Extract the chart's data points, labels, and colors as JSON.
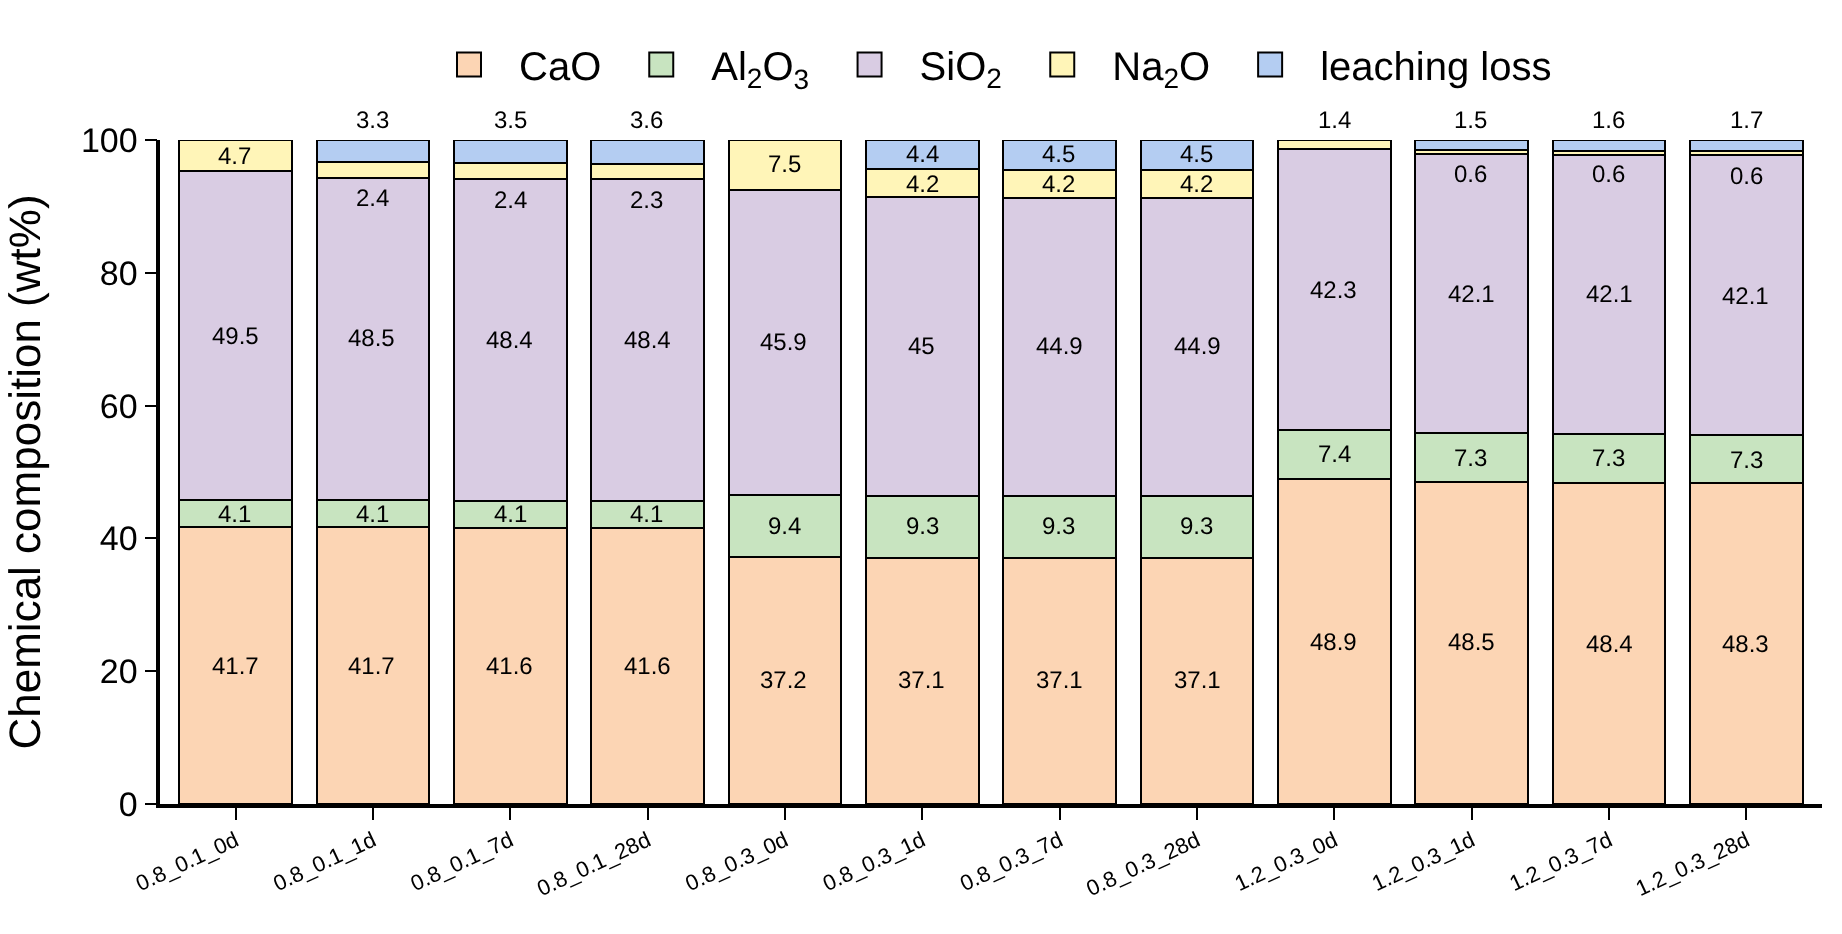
{
  "chart_data": {
    "type": "bar",
    "stacked": true,
    "ylabel": "Chemical composition (wt%)",
    "categories": [
      "0.8_0.1_0d",
      "0.8_0.1_1d",
      "0.8_0.1_7d",
      "0.8_0.1_28d",
      "0.8_0.3_0d",
      "0.8_0.3_1d",
      "0.8_0.3_7d",
      "0.8_0.3_28d",
      "1.2_0.3_0d",
      "1.2_0.3_1d",
      "1.2_0.3_7d",
      "1.2_0.3_28d"
    ],
    "series": [
      {
        "name": "CaO",
        "color": "#fcd5b4",
        "values": [
          41.7,
          41.7,
          41.6,
          41.6,
          37.2,
          37.1,
          37.1,
          37.1,
          48.9,
          48.5,
          48.4,
          48.3
        ]
      },
      {
        "name": "Al$_{2}$O$_{3}$",
        "color": "#c8e4c0",
        "values": [
          4.1,
          4.1,
          4.1,
          4.1,
          9.4,
          9.3,
          9.3,
          9.3,
          7.4,
          7.3,
          7.3,
          7.3
        ]
      },
      {
        "name": "SiO$_{2}$",
        "color": "#d9cce3",
        "values": [
          49.5,
          48.5,
          48.4,
          48.4,
          45.9,
          45,
          44.9,
          44.9,
          42.3,
          42.1,
          42.1,
          42.1
        ]
      },
      {
        "name": "Na$_{2}$O",
        "color": "#fff5b8",
        "values": [
          4.7,
          2.4,
          2.4,
          2.3,
          7.5,
          4.2,
          4.2,
          4.2,
          1.4,
          0.6,
          0.6,
          0.6
        ]
      },
      {
        "name": "leaching loss",
        "color": "#b4cdf2",
        "values": [
          null,
          3.3,
          3.5,
          3.6,
          null,
          4.4,
          4.5,
          4.5,
          null,
          1.5,
          1.6,
          1.7
        ]
      }
    ],
    "ylim": [
      0,
      100
    ],
    "yticks": [
      0,
      20,
      40,
      60,
      80,
      100
    ],
    "grid": false,
    "legend": "top",
    "data_labels": true
  }
}
